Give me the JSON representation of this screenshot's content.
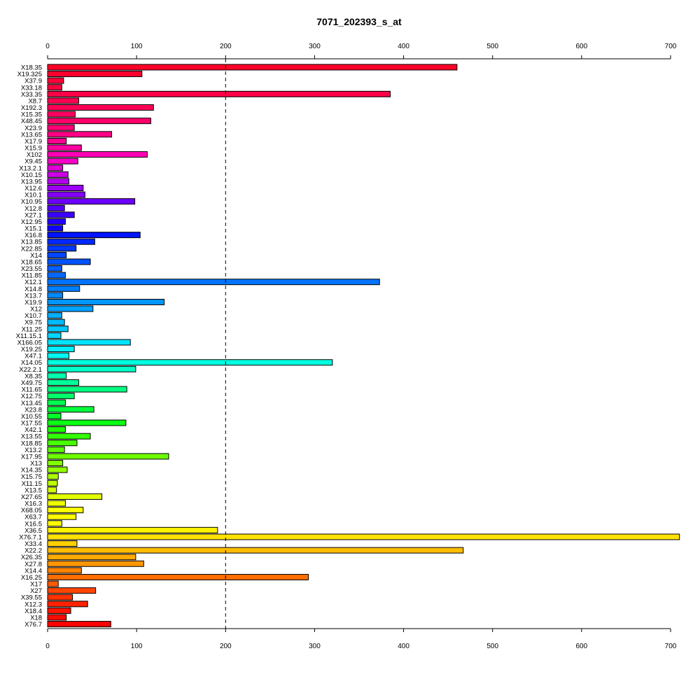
{
  "chart_data": {
    "type": "bar",
    "orientation": "horizontal",
    "title": "7071_202393_s_at",
    "xlim": [
      0,
      700
    ],
    "xticks": [
      0,
      100,
      200,
      300,
      400,
      500,
      600,
      700
    ],
    "reference_line": 200,
    "axes_top_and_bottom": true,
    "categories": [
      "X18.35",
      "X19.325",
      "X37.9",
      "X33.18",
      "X33.35",
      "X8.7",
      "X192.3",
      "X15.35",
      "X48.45",
      "X23.9",
      "X13.65",
      "X17.9",
      "X15.9",
      "X102",
      "X9.45",
      "X13.2.1",
      "X10.15",
      "X13.95",
      "X12.6",
      "X10.1",
      "X10.95",
      "X12.8",
      "X27.1",
      "X12.95",
      "X15.1",
      "X16.8",
      "X13.85",
      "X22.85",
      "X14",
      "X18.65",
      "X23.55",
      "X11.85",
      "X12.1",
      "X14.8",
      "X13.7",
      "X19.9",
      "X12",
      "X10.7",
      "X9.75",
      "X11.25",
      "X11.15.1",
      "X166.05",
      "X19.25",
      "X47.1",
      "X14.05",
      "X22.2.1",
      "X8.35",
      "X49.75",
      "X11.65",
      "X12.75",
      "X13.45",
      "X23.8",
      "X10.55",
      "X17.55",
      "X42.1",
      "X13.55",
      "X18.85",
      "X13.2",
      "X17.95",
      "X13",
      "X14.35",
      "X15.75",
      "X11.15",
      "X13.5",
      "X27.65",
      "X16.3",
      "X68.05",
      "X63.7",
      "X16.5",
      "X36.5",
      "X76.7.1",
      "X33.4",
      "X22.2",
      "X26.35",
      "X27.8",
      "X14.4",
      "X16.25",
      "X17",
      "X27",
      "X39.55",
      "X12.3",
      "X18.4",
      "X18",
      "X76.7"
    ],
    "values": [
      460,
      106,
      18,
      16,
      385,
      35,
      119,
      31,
      116,
      30,
      72,
      21,
      38,
      112,
      34,
      17,
      23,
      24,
      40,
      42,
      98,
      19,
      30,
      20,
      17,
      104,
      53,
      32,
      21,
      48,
      16,
      20,
      373,
      36,
      17,
      131,
      51,
      16,
      19,
      23,
      15,
      93,
      30,
      24,
      320,
      99,
      21,
      35,
      89,
      30,
      20,
      52,
      15,
      88,
      20,
      48,
      33,
      19,
      136,
      17,
      22,
      12,
      11,
      10,
      61,
      20,
      40,
      32,
      16,
      191,
      710,
      33,
      467,
      99,
      108,
      38,
      293,
      12,
      54,
      28,
      45,
      26,
      21,
      71
    ],
    "colors": [
      "#ff0026",
      "#ff002e",
      "#ff0036",
      "#ff003e",
      "#ff0047",
      "#ff004f",
      "#ff0057",
      "#ff0060",
      "#ff006b",
      "#ff0077",
      "#ff0085",
      "#ff0093",
      "#ff00a3",
      "#ff00b6",
      "#f700c9",
      "#e200d9",
      "#cc00e6",
      "#b400f0",
      "#9c00f7",
      "#8400fb",
      "#6c00fd",
      "#5400ff",
      "#3c00ff",
      "#2500ff",
      "#1000ff",
      "#0014ff",
      "#0028ff",
      "#0038ff",
      "#0046ff",
      "#0053ff",
      "#005fff",
      "#0069ff",
      "#0074ff",
      "#007fff",
      "#008aff",
      "#0096ff",
      "#00a2ff",
      "#00afff",
      "#00bcff",
      "#00c9ff",
      "#00d6ff",
      "#00e3ff",
      "#00efff",
      "#00f9f4",
      "#00ffdf",
      "#00ffc8",
      "#00ffb0",
      "#00ff98",
      "#00ff80",
      "#00ff68",
      "#00ff50",
      "#00ff3a",
      "#00ff26",
      "#0aff14",
      "#1eff00",
      "#32ff00",
      "#46ff00",
      "#5aff00",
      "#6eff00",
      "#82ff00",
      "#96ff00",
      "#aaff00",
      "#beff00",
      "#d2ff00",
      "#e2ff00",
      "#f0ff00",
      "#fbff00",
      "#ffff00",
      "#ffff00",
      "#fff200",
      "#ffe200",
      "#ffd000",
      "#ffbd00",
      "#ffaa00",
      "#ff9600",
      "#ff8200",
      "#ff6e00",
      "#ff5a00",
      "#ff4600",
      "#ff3200",
      "#ff2200",
      "#ff1400",
      "#ff0a00",
      "#ff0000"
    ]
  }
}
